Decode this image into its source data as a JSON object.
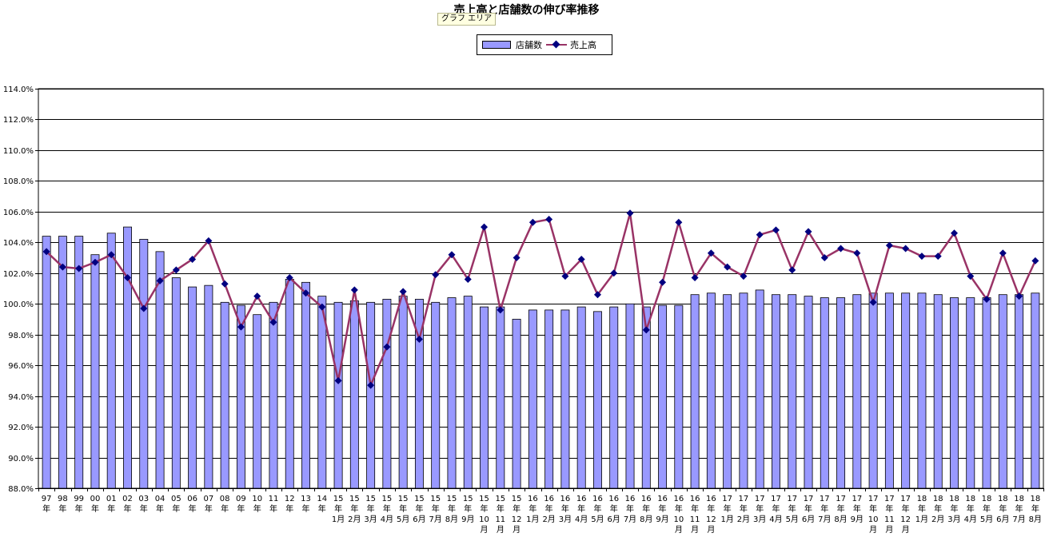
{
  "chart_data": {
    "type": "bar",
    "title": "売上高と店舗数の伸び率推移",
    "ylim": [
      88,
      114
    ],
    "yticks": [
      "88.0%",
      "90.0%",
      "92.0%",
      "94.0%",
      "96.0%",
      "98.0%",
      "100.0%",
      "102.0%",
      "104.0%",
      "106.0%",
      "108.0%",
      "110.0%",
      "112.0%",
      "114.0%"
    ],
    "grid": true,
    "legend_position": "top-center",
    "categories": [
      [
        "97",
        "年"
      ],
      [
        "98",
        "年"
      ],
      [
        "99",
        "年"
      ],
      [
        "00",
        "年"
      ],
      [
        "01",
        "年"
      ],
      [
        "02",
        "年"
      ],
      [
        "03",
        "年"
      ],
      [
        "04",
        "年"
      ],
      [
        "05",
        "年"
      ],
      [
        "06",
        "年"
      ],
      [
        "07",
        "年"
      ],
      [
        "08",
        "年"
      ],
      [
        "09",
        "年"
      ],
      [
        "10",
        "年"
      ],
      [
        "11",
        "年"
      ],
      [
        "12",
        "年"
      ],
      [
        "13",
        "年"
      ],
      [
        "14",
        "年"
      ],
      [
        "15",
        "年",
        "1月"
      ],
      [
        "15",
        "年",
        "2月"
      ],
      [
        "15",
        "年",
        "3月"
      ],
      [
        "15",
        "年",
        "4月"
      ],
      [
        "15",
        "年",
        "5月"
      ],
      [
        "15",
        "年",
        "6月"
      ],
      [
        "15",
        "年",
        "7月"
      ],
      [
        "15",
        "年",
        "8月"
      ],
      [
        "15",
        "年",
        "9月"
      ],
      [
        "15",
        "年",
        "10",
        "月"
      ],
      [
        "15",
        "年",
        "11",
        "月"
      ],
      [
        "15",
        "年",
        "12",
        "月"
      ],
      [
        "16",
        "年",
        "1月"
      ],
      [
        "16",
        "年",
        "2月"
      ],
      [
        "16",
        "年",
        "3月"
      ],
      [
        "16",
        "年",
        "4月"
      ],
      [
        "16",
        "年",
        "5月"
      ],
      [
        "16",
        "年",
        "6月"
      ],
      [
        "16",
        "年",
        "7月"
      ],
      [
        "16",
        "年",
        "8月"
      ],
      [
        "16",
        "年",
        "9月"
      ],
      [
        "16",
        "年",
        "10",
        "月"
      ],
      [
        "16",
        "年",
        "11",
        "月"
      ],
      [
        "16",
        "年",
        "12",
        "月"
      ],
      [
        "17",
        "年",
        "1月"
      ],
      [
        "17",
        "年",
        "2月"
      ],
      [
        "17",
        "年",
        "3月"
      ],
      [
        "17",
        "年",
        "4月"
      ],
      [
        "17",
        "年",
        "5月"
      ],
      [
        "17",
        "年",
        "6月"
      ],
      [
        "17",
        "年",
        "7月"
      ],
      [
        "17",
        "年",
        "8月"
      ],
      [
        "17",
        "年",
        "9月"
      ],
      [
        "17",
        "年",
        "10",
        "月"
      ],
      [
        "17",
        "年",
        "11",
        "月"
      ],
      [
        "17",
        "年",
        "12",
        "月"
      ],
      [
        "18",
        "年",
        "1月"
      ],
      [
        "18",
        "年",
        "2月"
      ],
      [
        "18",
        "年",
        "3月"
      ],
      [
        "18",
        "年",
        "4月"
      ],
      [
        "18",
        "年",
        "5月"
      ],
      [
        "18",
        "年",
        "6月"
      ],
      [
        "18",
        "年",
        "7月"
      ],
      [
        "18",
        "年",
        "8月"
      ]
    ],
    "series": [
      {
        "name": "店舗数",
        "type": "bar",
        "color": "#9999ff",
        "values": [
          104.4,
          104.4,
          104.4,
          103.2,
          104.6,
          105.0,
          104.2,
          103.4,
          101.7,
          101.1,
          101.2,
          100.1,
          99.9,
          99.3,
          100.1,
          101.6,
          101.4,
          100.5,
          100.1,
          100.2,
          100.1,
          100.3,
          100.5,
          100.3,
          100.1,
          100.4,
          100.5,
          99.8,
          99.8,
          99.0,
          99.6,
          99.6,
          99.6,
          99.8,
          99.5,
          99.8,
          100.0,
          99.8,
          99.9,
          99.9,
          100.6,
          100.7,
          100.6,
          100.7,
          100.9,
          100.6,
          100.6,
          100.5,
          100.4,
          100.4,
          100.6,
          100.7,
          100.7,
          100.7,
          100.7,
          100.6,
          100.4,
          100.4,
          100.4,
          100.6,
          100.6,
          100.7
        ]
      },
      {
        "name": "売上高",
        "type": "line",
        "color": "#993366",
        "marker_color": "#000080",
        "values": [
          103.4,
          102.4,
          102.3,
          102.7,
          103.2,
          101.7,
          99.7,
          101.5,
          102.2,
          102.9,
          104.1,
          101.3,
          98.5,
          100.5,
          98.8,
          101.7,
          100.7,
          99.8,
          95.0,
          100.9,
          94.7,
          97.2,
          100.8,
          97.7,
          101.9,
          103.2,
          101.6,
          105.0,
          99.6,
          103.0,
          105.3,
          105.5,
          101.8,
          102.9,
          100.6,
          102.0,
          105.9,
          98.3,
          101.4,
          105.3,
          101.7,
          103.3,
          102.4,
          101.8,
          104.5,
          104.8,
          102.2,
          104.7,
          103.0,
          103.6,
          103.3,
          100.1,
          103.8,
          103.6,
          103.1,
          103.1,
          104.6,
          101.8,
          100.3,
          103.3,
          100.5,
          102.8
        ]
      }
    ]
  },
  "tooltip_text": "グラフ エリア"
}
